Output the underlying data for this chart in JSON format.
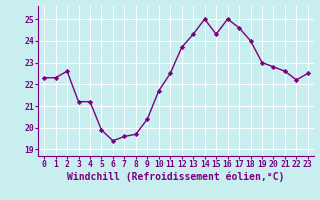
{
  "hours": [
    0,
    1,
    2,
    3,
    4,
    5,
    6,
    7,
    8,
    9,
    10,
    11,
    12,
    13,
    14,
    15,
    16,
    17,
    18,
    19,
    20,
    21,
    22,
    23
  ],
  "values": [
    22.3,
    22.3,
    22.6,
    21.2,
    21.2,
    19.9,
    19.4,
    19.6,
    19.7,
    20.4,
    21.7,
    22.5,
    23.7,
    24.3,
    25.0,
    24.3,
    25.0,
    24.6,
    24.0,
    23.0,
    22.8,
    22.6,
    22.2,
    22.5
  ],
  "line_color": "#7b0080",
  "marker": "D",
  "marker_size": 2.2,
  "bg_color": "#c8eef0",
  "grid_color": "#aad4d8",
  "xlabel": "Windchill (Refroidissement éolien,°C)",
  "ylim": [
    18.7,
    25.6
  ],
  "yticks": [
    19,
    20,
    21,
    22,
    23,
    24,
    25
  ],
  "xticks": [
    0,
    1,
    2,
    3,
    4,
    5,
    6,
    7,
    8,
    9,
    10,
    11,
    12,
    13,
    14,
    15,
    16,
    17,
    18,
    19,
    20,
    21,
    22,
    23
  ],
  "tick_fontsize": 5.8,
  "xlabel_fontsize": 7.0,
  "line_width": 1.0,
  "spine_color": "#7b0080",
  "text_color": "#7b0080"
}
